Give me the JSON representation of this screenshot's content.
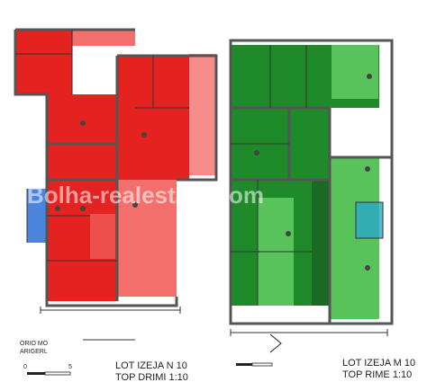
{
  "colors": {
    "unit_left": "#e4221f",
    "unit_left_light": "#f36f6c",
    "unit_right": "#1f8a2a",
    "unit_right_light": "#57c35a",
    "unit_right_dark": "#1b6a22",
    "wall": "#555555",
    "accent_blue": "#2a6fd6",
    "accent_teal": "#29a8c7"
  },
  "labels": {
    "left_plan_title": "LOT IZEJA N 10",
    "left_plan_subtitle": "TOP DRIMI 1:10",
    "right_plan_title": "LOT IZEJA M 10",
    "right_plan_subtitle": "TOP RIME 1:10",
    "legend_line1": "ORIO MO",
    "legend_line2": "ARIGERL",
    "scale_left": "0",
    "scale_right": "5",
    "watermark": "Bolha-realestate.com"
  }
}
